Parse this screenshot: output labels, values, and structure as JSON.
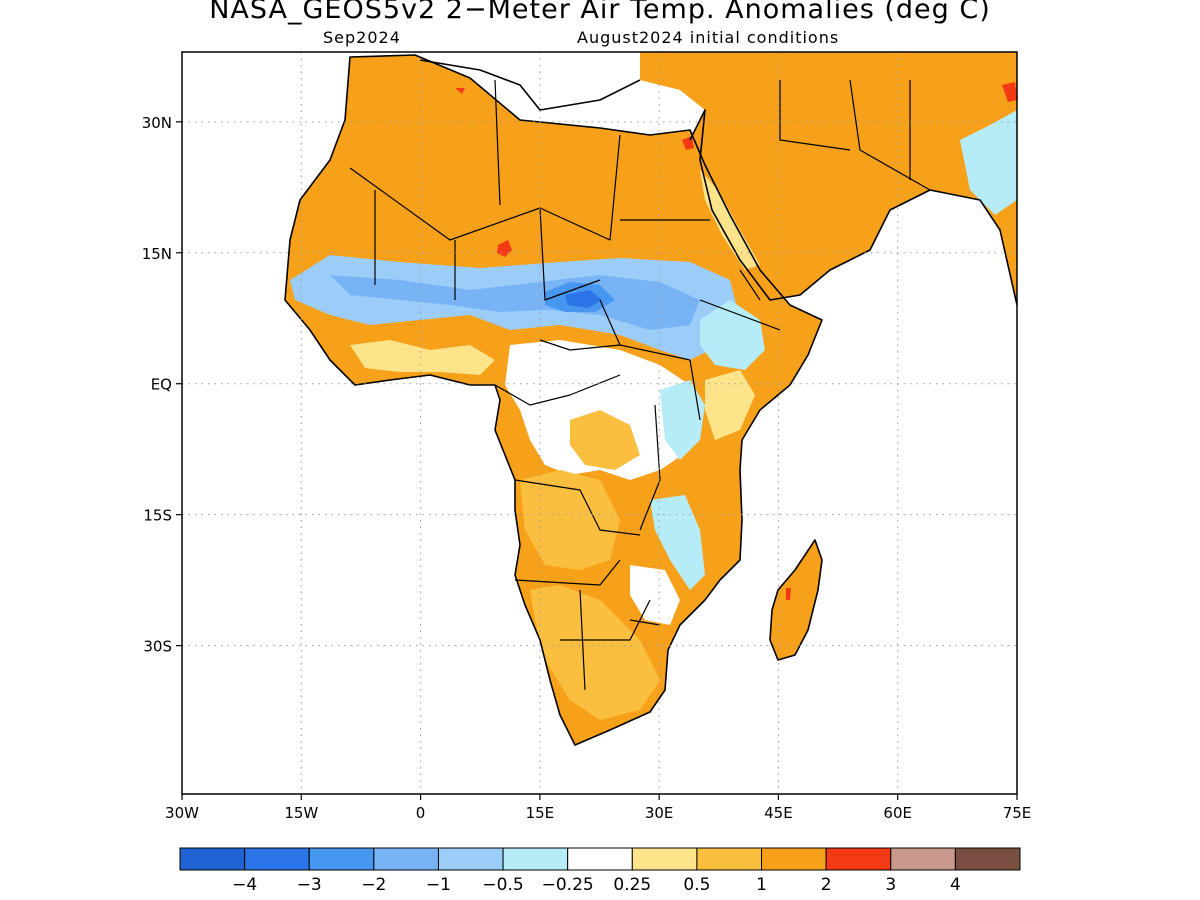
{
  "title": "NASA_GEOS5v2 2−Meter Air Temp. Anomalies (deg C)",
  "subtitle_left": "Sep2024",
  "subtitle_right": "August2024 initial conditions",
  "map": {
    "lon_range": [
      -30,
      75
    ],
    "lat_range": [
      -47,
      38
    ],
    "lat_ticks": [
      "30N",
      "15N",
      "EQ",
      "15S",
      "30S"
    ],
    "lon_ticks": [
      "30W",
      "15W",
      "0",
      "15E",
      "30E",
      "45E",
      "60E",
      "75E"
    ],
    "gridlines": "dotted",
    "grid_lons": [
      -15,
      0,
      15,
      30,
      45,
      60
    ],
    "grid_lats": [
      30,
      15,
      0,
      -15,
      -30
    ],
    "ocean_color": "#ffffff",
    "boundary_color": "#000000"
  },
  "colorbar": {
    "colors": [
      "#1f64d2",
      "#2a74e8",
      "#4796f0",
      "#78b4f5",
      "#9ccdf8",
      "#b5ecf7",
      "#ffffff",
      "#fde48a",
      "#fbbf40",
      "#f7a11a",
      "#f33a15",
      "#c99a8c",
      "#7b4e42"
    ],
    "labels": [
      "−4",
      "−3",
      "−2",
      "−1",
      "−0.5",
      "−0.25",
      "0.25",
      "0.5",
      "1",
      "2",
      "3",
      "4"
    ]
  },
  "legend_tick_anchor": "bin-boundaries"
}
